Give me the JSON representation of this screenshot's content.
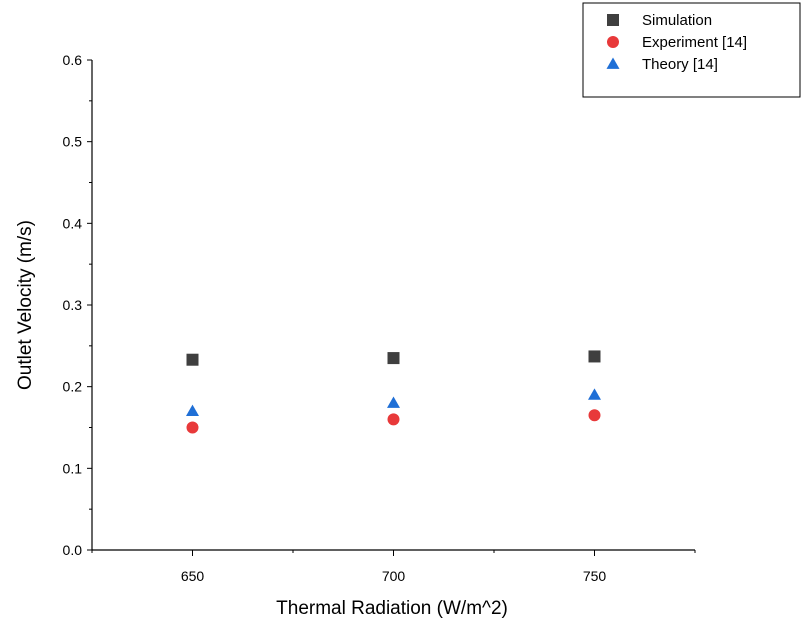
{
  "chart_data": {
    "type": "scatter",
    "xlabel": "Thermal Radiation (W/m^2)",
    "ylabel": "Outlet Velocity (m/s)",
    "x": [
      650,
      700,
      750
    ],
    "x_ticks": [
      "650",
      "700",
      "750"
    ],
    "xlim": [
      625,
      775
    ],
    "ylim": [
      0.0,
      0.6
    ],
    "y_ticks": [
      "0.0",
      "0.1",
      "0.2",
      "0.3",
      "0.4",
      "0.5",
      "0.6"
    ],
    "grid": false,
    "legend_position": "top-right",
    "series": [
      {
        "name": "Simulation",
        "marker": "square",
        "color": "#3f3f3f",
        "values": [
          0.233,
          0.235,
          0.237
        ]
      },
      {
        "name": "Experiment [14]",
        "marker": "circle",
        "color": "#e8393a",
        "values": [
          0.15,
          0.16,
          0.165
        ]
      },
      {
        "name": "Theory [14]",
        "marker": "triangle",
        "color": "#1f6fd6",
        "values": [
          0.17,
          0.18,
          0.19
        ]
      }
    ]
  }
}
